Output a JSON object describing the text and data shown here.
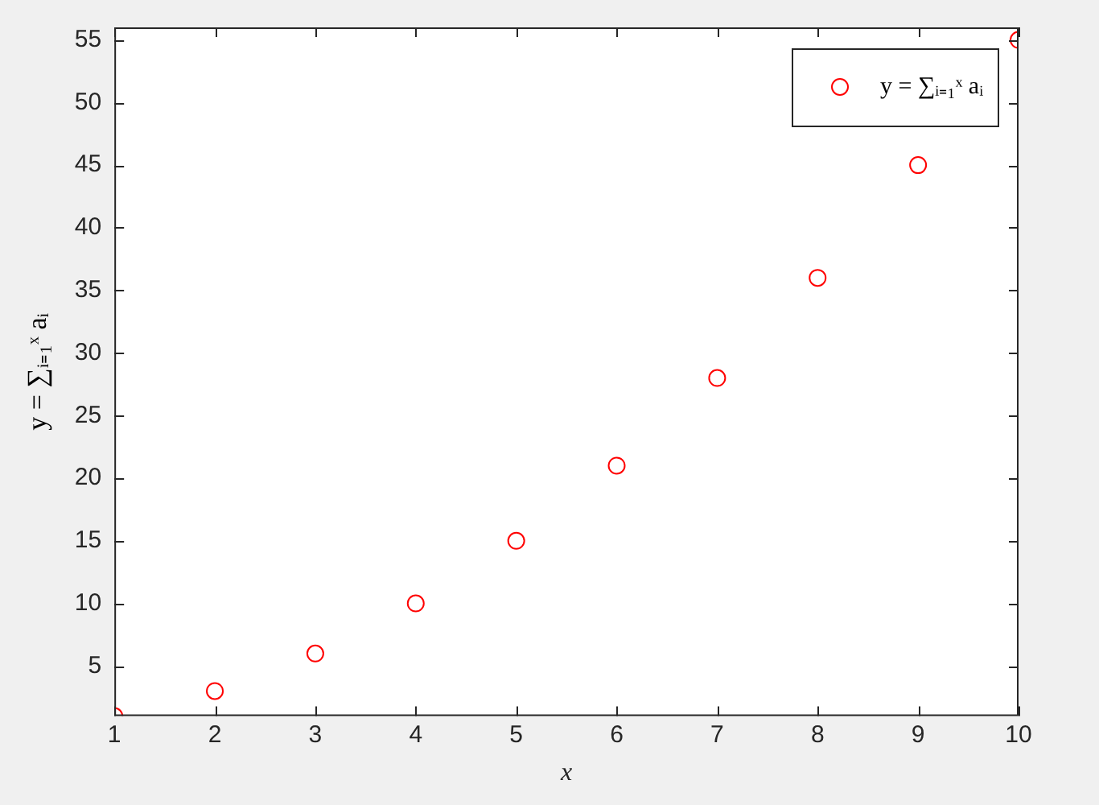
{
  "chart_data": {
    "type": "scatter",
    "xlabel": "x",
    "ylabel": "y = ∑ᵢ₌₁ˣ aᵢ",
    "x": [
      1,
      2,
      3,
      4,
      5,
      6,
      7,
      8,
      9,
      10
    ],
    "series": [
      {
        "name": "y = ∑ᵢ₌₁ˣ aᵢ",
        "color": "#ff0000",
        "values": [
          1,
          3,
          6,
          10,
          15,
          21,
          28,
          36,
          45,
          55
        ]
      }
    ],
    "xlim": [
      1,
      10
    ],
    "xticks": [
      1,
      2,
      3,
      4,
      5,
      6,
      7,
      8,
      9,
      10
    ],
    "ylim": [
      1,
      56
    ],
    "yticks": [
      5,
      10,
      15,
      20,
      25,
      30,
      35,
      40,
      45,
      50,
      55
    ],
    "marker": "circle",
    "legend": "top right",
    "grid": false
  }
}
